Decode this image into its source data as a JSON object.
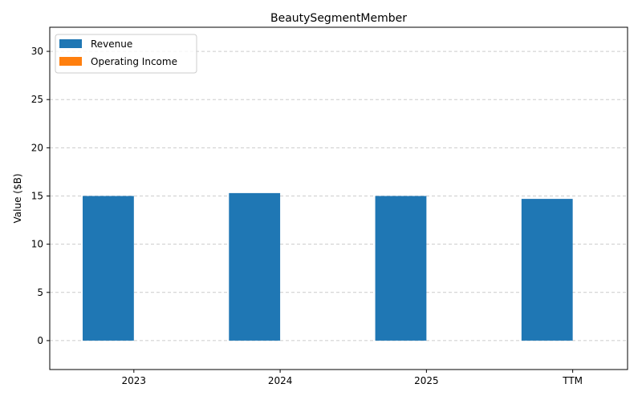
{
  "chart_data": {
    "type": "bar",
    "title": "BeautySegmentMember",
    "xlabel": "",
    "ylabel": "Value ($B)",
    "categories": [
      "2023",
      "2024",
      "2025",
      "TTM"
    ],
    "series": [
      {
        "name": "Revenue",
        "color": "#1f77b4",
        "values": [
          15.0,
          15.3,
          15.0,
          14.7
        ]
      },
      {
        "name": "Operating Income",
        "color": "#ff7f0e",
        "values": [
          0,
          0,
          0,
          0
        ]
      }
    ],
    "ylim": [
      -3,
      32.5
    ],
    "yticks": [
      "0",
      "5",
      "10",
      "15",
      "20",
      "25",
      "30"
    ],
    "grid": true,
    "legend_position": "top-left"
  }
}
